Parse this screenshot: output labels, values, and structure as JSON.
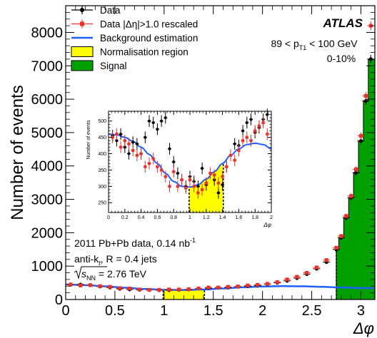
{
  "chart_data": {
    "type": "scatter",
    "main": {
      "xlabel": "Δφ",
      "ylabel": "Number of events",
      "xlim": [
        0,
        3.1416
      ],
      "ylim": [
        0,
        8800
      ],
      "x_ticks": [
        "0",
        "0.5",
        "1",
        "1.5",
        "2",
        "2.5",
        "3"
      ],
      "x_tick_values": [
        0,
        0.5,
        1,
        1.5,
        2,
        2.5,
        3
      ],
      "y_ticks": [
        "0",
        "1000",
        "2000",
        "3000",
        "4000",
        "5000",
        "6000",
        "7000",
        "8000"
      ],
      "y_tick_values": [
        0,
        1000,
        2000,
        3000,
        4000,
        5000,
        6000,
        7000,
        8000
      ],
      "normalisation_region": [
        0.99,
        1.41
      ],
      "signal_region": [
        2.75,
        3.1416
      ],
      "series": [
        {
          "name": "Data",
          "color": "#000000",
          "x": [
            0.05,
            0.15,
            0.25,
            0.35,
            0.45,
            0.55,
            0.65,
            0.75,
            0.85,
            0.95,
            1.05,
            1.15,
            1.25,
            1.35,
            1.45,
            1.55,
            1.65,
            1.75,
            1.85,
            1.95,
            2.05,
            2.15,
            2.25,
            2.35,
            2.45,
            2.55,
            2.65,
            2.75,
            2.8,
            2.85,
            2.9,
            2.95,
            3.0,
            3.05,
            3.1
          ],
          "y": [
            440,
            450,
            430,
            390,
            360,
            320,
            300,
            290,
            285,
            280,
            280,
            290,
            300,
            330,
            340,
            350,
            360,
            380,
            400,
            420,
            460,
            500,
            560,
            640,
            760,
            920,
            1120,
            1500,
            1850,
            2450,
            3050,
            3800,
            4750,
            5950,
            7200
          ]
        },
        {
          "name": "Data |Δη|>1.0 rescaled",
          "color": "#e8322c",
          "x": [
            0.05,
            0.15,
            0.25,
            0.35,
            0.45,
            0.55,
            0.65,
            0.75,
            0.85,
            0.95,
            1.05,
            1.15,
            1.25,
            1.35,
            1.45,
            1.55,
            1.65,
            1.75,
            1.85,
            1.95,
            2.05,
            2.15,
            2.25,
            2.35,
            2.45,
            2.55,
            2.65,
            2.75,
            2.8,
            2.85,
            2.9,
            2.95,
            3.0,
            3.05,
            3.1
          ],
          "y": [
            450,
            420,
            430,
            400,
            380,
            340,
            330,
            300,
            290,
            290,
            300,
            300,
            310,
            330,
            360,
            360,
            380,
            390,
            420,
            440,
            470,
            520,
            600,
            680,
            800,
            960,
            1180,
            1550,
            1900,
            2500,
            3100,
            3900,
            4900,
            6100,
            8200
          ]
        },
        {
          "name": "Background estimation",
          "color": "#2060ff",
          "type": "line",
          "x": [
            0,
            0.2,
            0.4,
            0.6,
            0.8,
            1.0,
            1.2,
            1.4,
            1.6,
            1.8,
            2.0,
            2.2,
            2.4,
            2.6,
            2.8,
            3.0,
            3.14
          ],
          "y": [
            450,
            430,
            395,
            355,
            315,
            292,
            285,
            300,
            330,
            365,
            390,
            400,
            395,
            380,
            360,
            345,
            340
          ]
        }
      ],
      "signal_histogram": {
        "x": [
          2.75,
          2.8,
          2.85,
          2.9,
          2.95,
          3.0,
          3.05,
          3.1
        ],
        "y": [
          1500,
          1850,
          2450,
          3050,
          3800,
          4750,
          5950,
          7200
        ]
      }
    },
    "inset": {
      "xlabel": "Δφ",
      "ylabel": "Number of events",
      "xlim": [
        0,
        2
      ],
      "ylim": [
        220,
        530
      ],
      "x_ticks": [
        "0",
        "0.2",
        "0.4",
        "0.6",
        "0.8",
        "1",
        "1.2",
        "1.4",
        "1.6",
        "1.8",
        "2"
      ],
      "x_tick_values": [
        0,
        0.2,
        0.4,
        0.6,
        0.8,
        1,
        1.2,
        1.4,
        1.6,
        1.8,
        2
      ],
      "y_ticks": [
        "250",
        "300",
        "350",
        "400",
        "450",
        "500"
      ],
      "y_tick_values": [
        250,
        300,
        350,
        400,
        450,
        500
      ],
      "normalisation_region": [
        0.99,
        1.41
      ],
      "series": [
        {
          "name": "Data",
          "color": "#000000",
          "x": [
            0.05,
            0.1,
            0.15,
            0.2,
            0.25,
            0.3,
            0.35,
            0.4,
            0.45,
            0.5,
            0.55,
            0.6,
            0.65,
            0.7,
            0.75,
            0.8,
            0.85,
            0.9,
            0.95,
            1.0,
            1.05,
            1.1,
            1.15,
            1.2,
            1.25,
            1.3,
            1.35,
            1.4,
            1.45,
            1.5,
            1.55,
            1.6,
            1.65,
            1.7,
            1.75,
            1.8,
            1.85,
            1.9,
            1.95
          ],
          "y": [
            455,
            440,
            460,
            420,
            400,
            435,
            430,
            400,
            450,
            500,
            495,
            475,
            500,
            510,
            415,
            375,
            340,
            320,
            300,
            330,
            315,
            300,
            355,
            305,
            340,
            320,
            280,
            305,
            360,
            395,
            430,
            425,
            470,
            495,
            505,
            465,
            480,
            505,
            520
          ]
        },
        {
          "name": "Data |Δη|>1.0 rescaled",
          "color": "#e8322c",
          "x": [
            0.05,
            0.1,
            0.15,
            0.2,
            0.25,
            0.3,
            0.35,
            0.4,
            0.45,
            0.5,
            0.55,
            0.6,
            0.65,
            0.7,
            0.75,
            0.8,
            0.85,
            0.9,
            0.95,
            1.0,
            1.05,
            1.1,
            1.15,
            1.2,
            1.25,
            1.3,
            1.35,
            1.4,
            1.45,
            1.5,
            1.55,
            1.6,
            1.65,
            1.7,
            1.75,
            1.8,
            1.85,
            1.9,
            1.95
          ],
          "y": [
            450,
            460,
            420,
            440,
            430,
            410,
            395,
            400,
            360,
            370,
            385,
            360,
            350,
            330,
            300,
            345,
            300,
            320,
            295,
            320,
            300,
            280,
            290,
            310,
            340,
            335,
            310,
            330,
            360,
            395,
            380,
            410,
            440,
            450,
            440,
            470,
            485,
            495,
            460
          ]
        },
        {
          "name": "Background estimation",
          "color": "#2060ff",
          "type": "line",
          "x": [
            0,
            0.1,
            0.2,
            0.3,
            0.4,
            0.5,
            0.6,
            0.7,
            0.8,
            0.9,
            1.0,
            1.1,
            1.2,
            1.3,
            1.4,
            1.5,
            1.6,
            1.7,
            1.8,
            1.9,
            2.0
          ],
          "y": [
            460,
            458,
            450,
            438,
            420,
            398,
            370,
            340,
            315,
            300,
            298,
            305,
            322,
            345,
            370,
            395,
            415,
            428,
            432,
            428,
            415
          ]
        }
      ]
    },
    "legend": {
      "placement": "top-left",
      "entries": [
        {
          "label": "Data",
          "kind": "marker",
          "color": "#000000"
        },
        {
          "label": "Data |Δη|>1.0 rescaled",
          "kind": "marker",
          "color": "#e8322c"
        },
        {
          "label": "Background estimation",
          "kind": "line",
          "color": "#2060ff"
        },
        {
          "label": "Normalisation region",
          "kind": "box",
          "color": "#ffff00"
        },
        {
          "label": "Signal",
          "kind": "box",
          "color": "#00a000"
        }
      ]
    },
    "annotations": {
      "atlas": "ATLAS",
      "pt_range": "89 < p",
      "pt_sub": "T1",
      "pt_unit": " < 100 GeV",
      "centrality": "0-10%",
      "dataset": "2011 Pb+Pb data, 0.14 nb",
      "dataset_sup": "-1",
      "jets": "anti-k",
      "jets_sub": "t",
      "jets_rest": ", R = 0.4 jets",
      "energy_pre": "s",
      "energy_sub": "NN",
      "energy_rest": " = 2.76 TeV"
    },
    "colors": {
      "data": "#000000",
      "rescaled": "#e8322c",
      "background": "#2060ff",
      "normalisation": "#ffff00",
      "signal": "#00a000"
    }
  }
}
